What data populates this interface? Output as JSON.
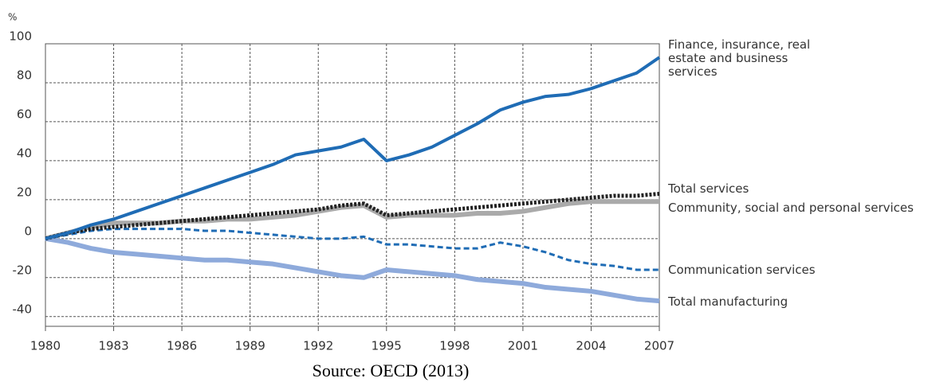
{
  "chart_data": {
    "type": "line",
    "y_label": "%",
    "source": "Source: OECD (2013)",
    "x": [
      1980,
      1981,
      1982,
      1983,
      1984,
      1985,
      1986,
      1987,
      1988,
      1989,
      1990,
      1991,
      1992,
      1993,
      1994,
      1995,
      1996,
      1997,
      1998,
      1999,
      2000,
      2001,
      2002,
      2003,
      2004,
      2005,
      2006,
      2007
    ],
    "xlim": [
      1980,
      2007
    ],
    "xticks": [
      1980,
      1983,
      1986,
      1989,
      1992,
      1995,
      1998,
      2001,
      2004,
      2007
    ],
    "ylim": [
      -45,
      100
    ],
    "yticks": [
      -40,
      -20,
      0,
      20,
      40,
      60,
      80,
      100
    ],
    "grid": true,
    "series": [
      {
        "name": "Finance, insurance, real estate and business services",
        "color": "#1f6cb5",
        "values": [
          0,
          3,
          7,
          10,
          14,
          18,
          22,
          26,
          30,
          34,
          38,
          43,
          45,
          47,
          51,
          40,
          43,
          47,
          53,
          59,
          66,
          70,
          73,
          74,
          77,
          81,
          85,
          93
        ]
      },
      {
        "name": "Total services",
        "color": "#222222",
        "values": [
          0,
          3,
          5,
          6,
          7,
          8,
          9,
          10,
          11,
          12,
          13,
          14,
          15,
          17,
          18,
          12,
          13,
          14,
          15,
          16,
          17,
          18,
          19,
          20,
          21,
          22,
          22,
          23
        ]
      },
      {
        "name": "Community, social and personal services",
        "color": "#aaaaaa",
        "values": [
          0,
          3,
          6,
          8,
          8,
          8,
          9,
          9,
          10,
          10,
          11,
          12,
          14,
          16,
          17,
          11,
          12,
          12,
          12,
          13,
          13,
          14,
          16,
          18,
          19,
          19,
          19,
          19
        ]
      },
      {
        "name": "Communication services",
        "color": "#1f6cb5",
        "values": [
          0,
          2,
          4,
          5,
          5,
          5,
          5,
          4,
          4,
          3,
          2,
          1,
          0,
          0,
          1,
          -3,
          -3,
          -4,
          -5,
          -5,
          -2,
          -4,
          -7,
          -11,
          -13,
          -14,
          -16,
          -16
        ]
      },
      {
        "name": "Total manufacturing",
        "color": "#8eaadb",
        "values": [
          0,
          -2,
          -5,
          -7,
          -8,
          -9,
          -10,
          -11,
          -11,
          -12,
          -13,
          -15,
          -17,
          -19,
          -20,
          -16,
          -17,
          -18,
          -19,
          -21,
          -22,
          -23,
          -25,
          -26,
          -27,
          -29,
          -31,
          -32
        ]
      }
    ]
  }
}
